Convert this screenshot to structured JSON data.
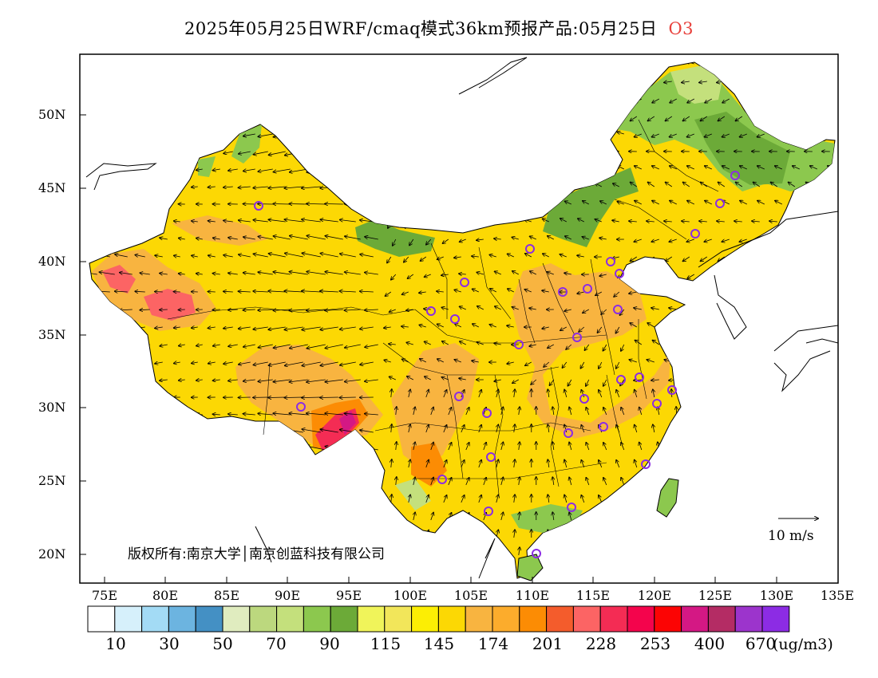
{
  "title": {
    "main": "2025年05月25日WRF/cmaq模式36km预报产品:05月25日",
    "pollutant": "O3"
  },
  "axes": {
    "x_ticks": [
      "75E",
      "80E",
      "85E",
      "90E",
      "95E",
      "100E",
      "105E",
      "110E",
      "115E",
      "120E",
      "125E",
      "130E",
      "135E"
    ],
    "y_ticks": [
      "50N",
      "45N",
      "40N",
      "35N",
      "30N",
      "25N",
      "20N"
    ]
  },
  "wind_scale": {
    "label": "10  m/s"
  },
  "copyright": "版权所有:南京大学│南京创蓝科技有限公司",
  "legend": {
    "colors": [
      "#ffffff",
      "#d6f0fb",
      "#a3dbf5",
      "#6cb4e0",
      "#4490c4",
      "#e0ecbf",
      "#bcd87e",
      "#c4e07c",
      "#8cc84e",
      "#6caa38",
      "#f0f45a",
      "#f2e65a",
      "#fcee04",
      "#fcd804",
      "#f8b440",
      "#fcac2c",
      "#fc8c04",
      "#f45c2c",
      "#fc6464",
      "#f42c54",
      "#f4044c",
      "#fc0404",
      "#d41884",
      "#b42c64",
      "#9c34cc",
      "#8c2ce4"
    ],
    "labels": [
      "10",
      "30",
      "50",
      "70",
      "90",
      "115",
      "145",
      "174",
      "201",
      "228",
      "253",
      "400",
      "670"
    ],
    "unit": "(ug/m3)"
  },
  "map_colors": {
    "background": "#ffffff",
    "base": "#fcd804",
    "orange": "#f8b440",
    "green": "#8cc84e",
    "dark_green": "#6caa38",
    "pale_green": "#c4e07c",
    "red": "#f42c54",
    "crimson": "#d41884",
    "station_ring": "#8c2ce4"
  }
}
